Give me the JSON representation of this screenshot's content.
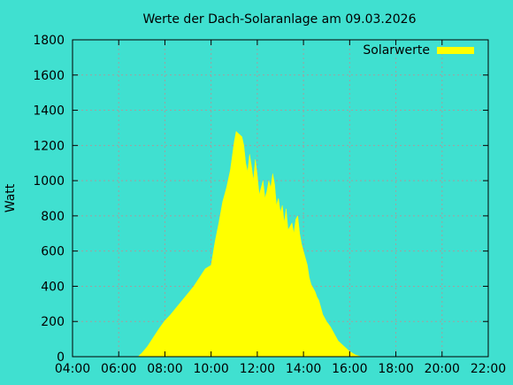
{
  "chart_data": {
    "type": "area",
    "title": "Werte der Dach-Solaranlage am 09.03.2026",
    "xlabel": "",
    "ylabel": "Watt",
    "xlim": [
      "04:00",
      "22:00"
    ],
    "ylim": [
      0,
      1800
    ],
    "x_ticks": [
      "04:00",
      "06:00",
      "08:00",
      "10:00",
      "12:00",
      "14:00",
      "16:00",
      "18:00",
      "20:00",
      "22:00"
    ],
    "y_ticks": [
      0,
      200,
      400,
      600,
      800,
      1000,
      1200,
      1400,
      1600,
      1800
    ],
    "grid": true,
    "legend": {
      "position": "top-right",
      "entries": [
        {
          "name": "Solarwerte",
          "color": "#ffff00"
        }
      ]
    },
    "series": [
      {
        "name": "Solarwerte",
        "color": "#ffff00",
        "x": [
          "06:50",
          "07:00",
          "07:15",
          "07:30",
          "07:45",
          "08:00",
          "08:15",
          "08:30",
          "08:45",
          "09:00",
          "09:15",
          "09:30",
          "09:45",
          "10:00",
          "10:10",
          "10:20",
          "10:30",
          "10:40",
          "10:50",
          "11:00",
          "11:05",
          "11:10",
          "11:15",
          "11:20",
          "11:25",
          "11:30",
          "11:35",
          "11:40",
          "11:45",
          "11:50",
          "11:55",
          "12:00",
          "12:05",
          "12:10",
          "12:15",
          "12:20",
          "12:25",
          "12:30",
          "12:35",
          "12:40",
          "12:45",
          "12:50",
          "12:55",
          "13:00",
          "13:05",
          "13:10",
          "13:15",
          "13:20",
          "13:30",
          "13:35",
          "13:40",
          "13:45",
          "13:50",
          "13:55",
          "14:00",
          "14:05",
          "14:10",
          "14:15",
          "14:20",
          "14:25",
          "14:30",
          "14:35",
          "14:40",
          "14:45",
          "14:50",
          "15:00",
          "15:10",
          "15:20",
          "15:30",
          "15:45",
          "16:00",
          "16:15",
          "16:30",
          "16:45",
          "17:00",
          "17:15",
          "17:30",
          "17:45",
          "17:55"
        ],
        "values": [
          0,
          20,
          60,
          110,
          160,
          205,
          240,
          280,
          320,
          360,
          400,
          450,
          500,
          520,
          650,
          760,
          880,
          960,
          1060,
          1220,
          1280,
          1270,
          1260,
          1250,
          1200,
          1100,
          1050,
          1150,
          1080,
          1000,
          1120,
          1030,
          920,
          960,
          1000,
          900,
          940,
          1000,
          960,
          1040,
          980,
          860,
          900,
          820,
          860,
          760,
          840,
          720,
          760,
          700,
          780,
          800,
          700,
          640,
          600,
          560,
          520,
          450,
          410,
          390,
          370,
          340,
          320,
          280,
          240,
          200,
          170,
          130,
          90,
          60,
          30,
          10,
          0,
          0,
          0,
          0,
          0,
          0,
          0
        ]
      }
    ]
  }
}
